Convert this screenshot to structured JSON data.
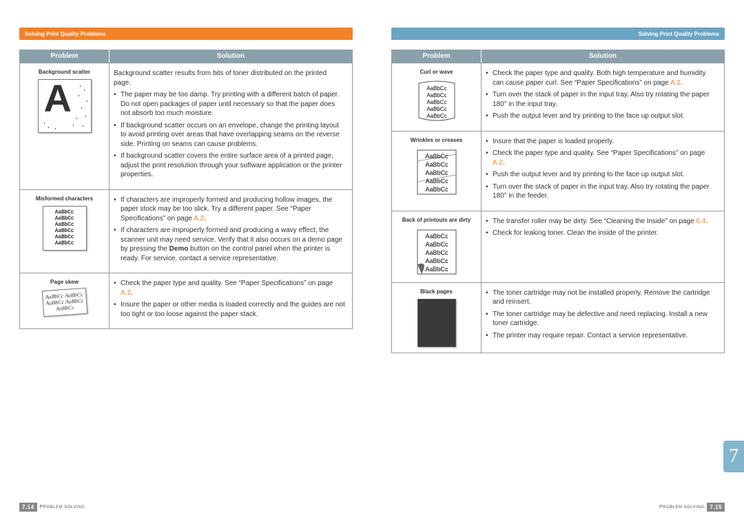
{
  "header_left": "Solving Print Quality Problems",
  "header_right": "Solving Print Quality Problems",
  "columns": {
    "problem": "Problem",
    "solution": "Solution"
  },
  "left_rows": [
    {
      "label": "Background scatter",
      "intro": "Background scatter results from bits of toner distributed on the printed page.",
      "items": [
        "The paper may be too damp. Try printing with a different batch of paper. Do not open packages of paper until necessary so that the paper does not absorb too much moisture.",
        "If background scatter occurs on an envelope, change the printing layout to avoid printing over areas that have overlapping seams on the reverse side. Printing on seams can cause problems.",
        "If background scatter covers the entire surface area of a printed page, adjust the print resolution through your software application or the printer properties."
      ]
    },
    {
      "label": "Misformed characters",
      "items_html": [
        "If characters are improperly formed and producing hollow images, the paper stock may be too slick. Try a different paper. See “Paper Specifications” on page <span class='link'>A.2</span>.",
        "If characters are improperly formed and producing a wavy effect, the scanner unit may need service. Verify that it also occurs on a demo page by pressing the <span class='bold'>Demo</span> button on the control panel when the printer is ready. For service, contact a service representative."
      ]
    },
    {
      "label": "Page skew",
      "items_html": [
        "Check the paper type and quality. See “Paper Specifications” on page <span class='link'>A.2</span>.",
        "Insure the paper or other media is loaded correctly and the guides are not too tight or too loose against the paper stack."
      ]
    }
  ],
  "right_rows": [
    {
      "label": "Curl or wave",
      "items_html": [
        "Check the paper type and quality. Both high temperature and humidity can cause paper curl. See “Paper Specifications” on page <span class='link'>A.2</span>.",
        "Turn over the stack of paper in the input tray. Also try rotating the paper 180° in the input tray.",
        "Push the output lever and try printing to the face up output slot."
      ]
    },
    {
      "label": "Wrinkles or creases",
      "items_html": [
        "Insure that the paper is loaded properly.",
        "Check the paper type and quality. See “Paper Specifications” on page <span class='link'>A.2</span>.",
        "Push the output lever and try printing to the face up output slot.",
        "Turn over the stack of paper in the input tray. Also try rotating the paper 180° in the feeder."
      ]
    },
    {
      "label": "Back of printouts are dirty",
      "items_html": [
        "The transfer roller may be dirty. See “Cleaning the Inside” on page <span class='link'>6.4</span>.",
        "Check for leaking toner. Clean the inside of the printer."
      ]
    },
    {
      "label": "Black pages",
      "items": [
        "The toner cartridge may not be installed properly. Remove the cartridge and reinsert.",
        "The toner cartridge may be defective and need replacing. Install a new toner cartridge.",
        "The printer may require repair. Contact a service representative."
      ]
    }
  ],
  "sample_text": "AaBbCc",
  "footer": {
    "left_num": "7.14",
    "right_num": "7.15",
    "text_upper": "P",
    "text_rest": "ROBLEM SOLVING"
  },
  "side_tab": "7",
  "colors": {
    "orange": "#f58025",
    "blue": "#6ba5c4",
    "th_bg": "#8aa0ab",
    "side_tab": "#84b5cf"
  }
}
